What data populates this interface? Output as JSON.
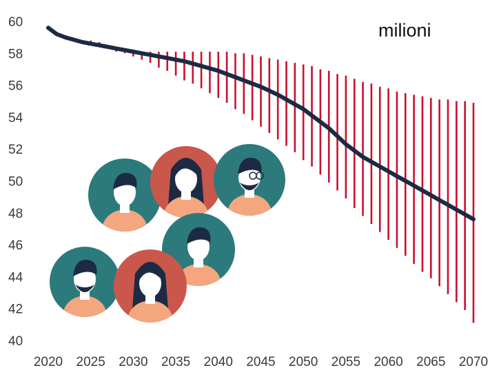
{
  "chart_data": {
    "type": "line",
    "unit_label": "milioni",
    "x": [
      2020,
      2021,
      2022,
      2023,
      2024,
      2025,
      2026,
      2027,
      2028,
      2029,
      2030,
      2031,
      2032,
      2033,
      2034,
      2035,
      2036,
      2037,
      2038,
      2039,
      2040,
      2041,
      2042,
      2043,
      2044,
      2045,
      2046,
      2047,
      2048,
      2049,
      2050,
      2051,
      2052,
      2053,
      2054,
      2055,
      2056,
      2057,
      2058,
      2059,
      2060,
      2061,
      2062,
      2063,
      2064,
      2065,
      2066,
      2067,
      2068,
      2069,
      2070
    ],
    "xticks": [
      2020,
      2025,
      2030,
      2035,
      2040,
      2045,
      2050,
      2055,
      2060,
      2065,
      2070
    ],
    "yticks": [
      40,
      42,
      44,
      46,
      48,
      50,
      52,
      54,
      56,
      58,
      60
    ],
    "ylim": [
      40,
      60
    ],
    "xlim": [
      2020,
      2070
    ],
    "series": [
      {
        "values": [
          59.6,
          59.2,
          59.0,
          58.85,
          58.7,
          58.6,
          58.5,
          58.4,
          58.3,
          58.2,
          58.1,
          58.0,
          57.9,
          57.8,
          57.7,
          57.6,
          57.5,
          57.35,
          57.2,
          57.05,
          56.9,
          56.7,
          56.5,
          56.3,
          56.1,
          55.9,
          55.65,
          55.4,
          55.1,
          54.8,
          54.5,
          54.1,
          53.7,
          53.3,
          52.8,
          52.3,
          51.9,
          51.5,
          51.2,
          50.9,
          50.6,
          50.3,
          50.0,
          49.7,
          49.4,
          49.1,
          48.8,
          48.5,
          48.2,
          47.9,
          47.6
        ],
        "color": "#1c2a44"
      },
      {
        "values": [
          null,
          null,
          null,
          null,
          58.8,
          58.8,
          58.7,
          58.5,
          58.4,
          58.3,
          58.2,
          58.1,
          58.1,
          58.1,
          58.1,
          58.1,
          58.1,
          58.1,
          58.1,
          58.1,
          58.1,
          58.1,
          58.0,
          58.0,
          57.9,
          57.8,
          57.7,
          57.6,
          57.5,
          57.4,
          57.3,
          57.2,
          57.0,
          56.9,
          56.7,
          56.6,
          56.4,
          56.2,
          56.1,
          55.9,
          55.8,
          55.6,
          55.5,
          55.4,
          55.3,
          55.2,
          55.1,
          55.1,
          55.0,
          55.0,
          54.9
        ],
        "color": "#c8102e"
      },
      {
        "values": [
          null,
          null,
          null,
          null,
          58.6,
          58.5,
          58.4,
          58.3,
          58.1,
          58.0,
          57.8,
          57.6,
          57.4,
          57.1,
          56.9,
          56.6,
          56.3,
          56.1,
          55.8,
          55.5,
          55.2,
          54.9,
          54.5,
          54.2,
          53.8,
          53.4,
          53.0,
          52.6,
          52.2,
          51.8,
          51.3,
          50.9,
          50.4,
          49.9,
          49.4,
          48.9,
          48.3,
          47.8,
          47.3,
          46.8,
          46.3,
          45.8,
          45.3,
          44.8,
          44.3,
          43.9,
          43.4,
          42.9,
          42.4,
          41.9,
          41.1
        ],
        "color": "#c8102e"
      }
    ],
    "grid": false,
    "colors": {
      "median_line": "#1c2a44",
      "range_bars": "#c8102e",
      "avatar_teal": "#2c7a7b",
      "avatar_red": "#c9574c",
      "skin": "#f4a77e",
      "hair": "#1c2a44"
    }
  },
  "illustration": {
    "avatars": [
      {
        "icon": "man-avatar-icon",
        "bg": "#2c7a7b"
      },
      {
        "icon": "woman-avatar-icon",
        "bg": "#c9574c"
      },
      {
        "icon": "bearded-man-glasses-avatar-icon",
        "bg": "#2c7a7b"
      },
      {
        "icon": "man-avatar-icon",
        "bg": "#2c7a7b"
      },
      {
        "icon": "bearded-man-avatar-icon",
        "bg": "#2c7a7b"
      },
      {
        "icon": "woman-avatar-icon",
        "bg": "#c9574c"
      }
    ]
  }
}
